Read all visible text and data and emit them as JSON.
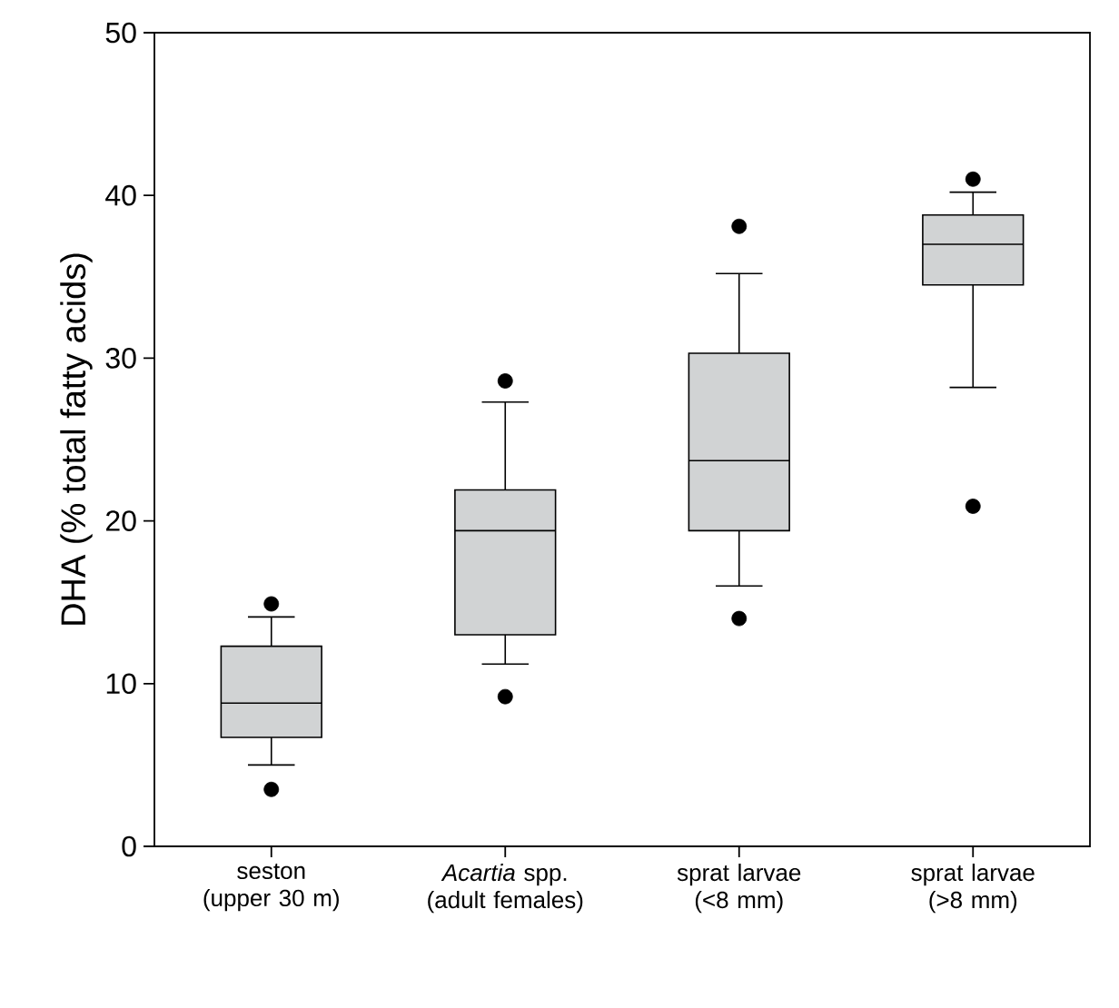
{
  "chart_data": {
    "type": "box",
    "ylabel": "DHA (% total fatty acids)",
    "categories": [
      "seston (upper 30 m)",
      "*Acartia* spp. (adult females)",
      "sprat larvae (<8 mm)",
      "sprat larvae (>8 mm)"
    ],
    "color": "#d1d3d4",
    "boxes": [
      {
        "low": 5.0,
        "q1": 6.7,
        "median": 8.8,
        "q3": 12.3,
        "high": 14.1,
        "outliers": [
          3.5,
          14.9
        ]
      },
      {
        "low": 11.2,
        "q1": 13.0,
        "median": 19.4,
        "q3": 21.9,
        "high": 27.3,
        "outliers": [
          9.2,
          28.6
        ]
      },
      {
        "low": 16.0,
        "q1": 19.4,
        "median": 23.7,
        "q3": 30.3,
        "high": 35.2,
        "outliers": [
          14.0,
          38.1
        ]
      },
      {
        "low": 28.2,
        "q1": 34.5,
        "median": 37.0,
        "q3": 38.8,
        "high": 40.2,
        "outliers": [
          20.9,
          41.0
        ]
      }
    ],
    "ylim": [
      0,
      50
    ],
    "yticks": [
      0,
      10,
      20,
      30,
      40,
      50
    ]
  }
}
